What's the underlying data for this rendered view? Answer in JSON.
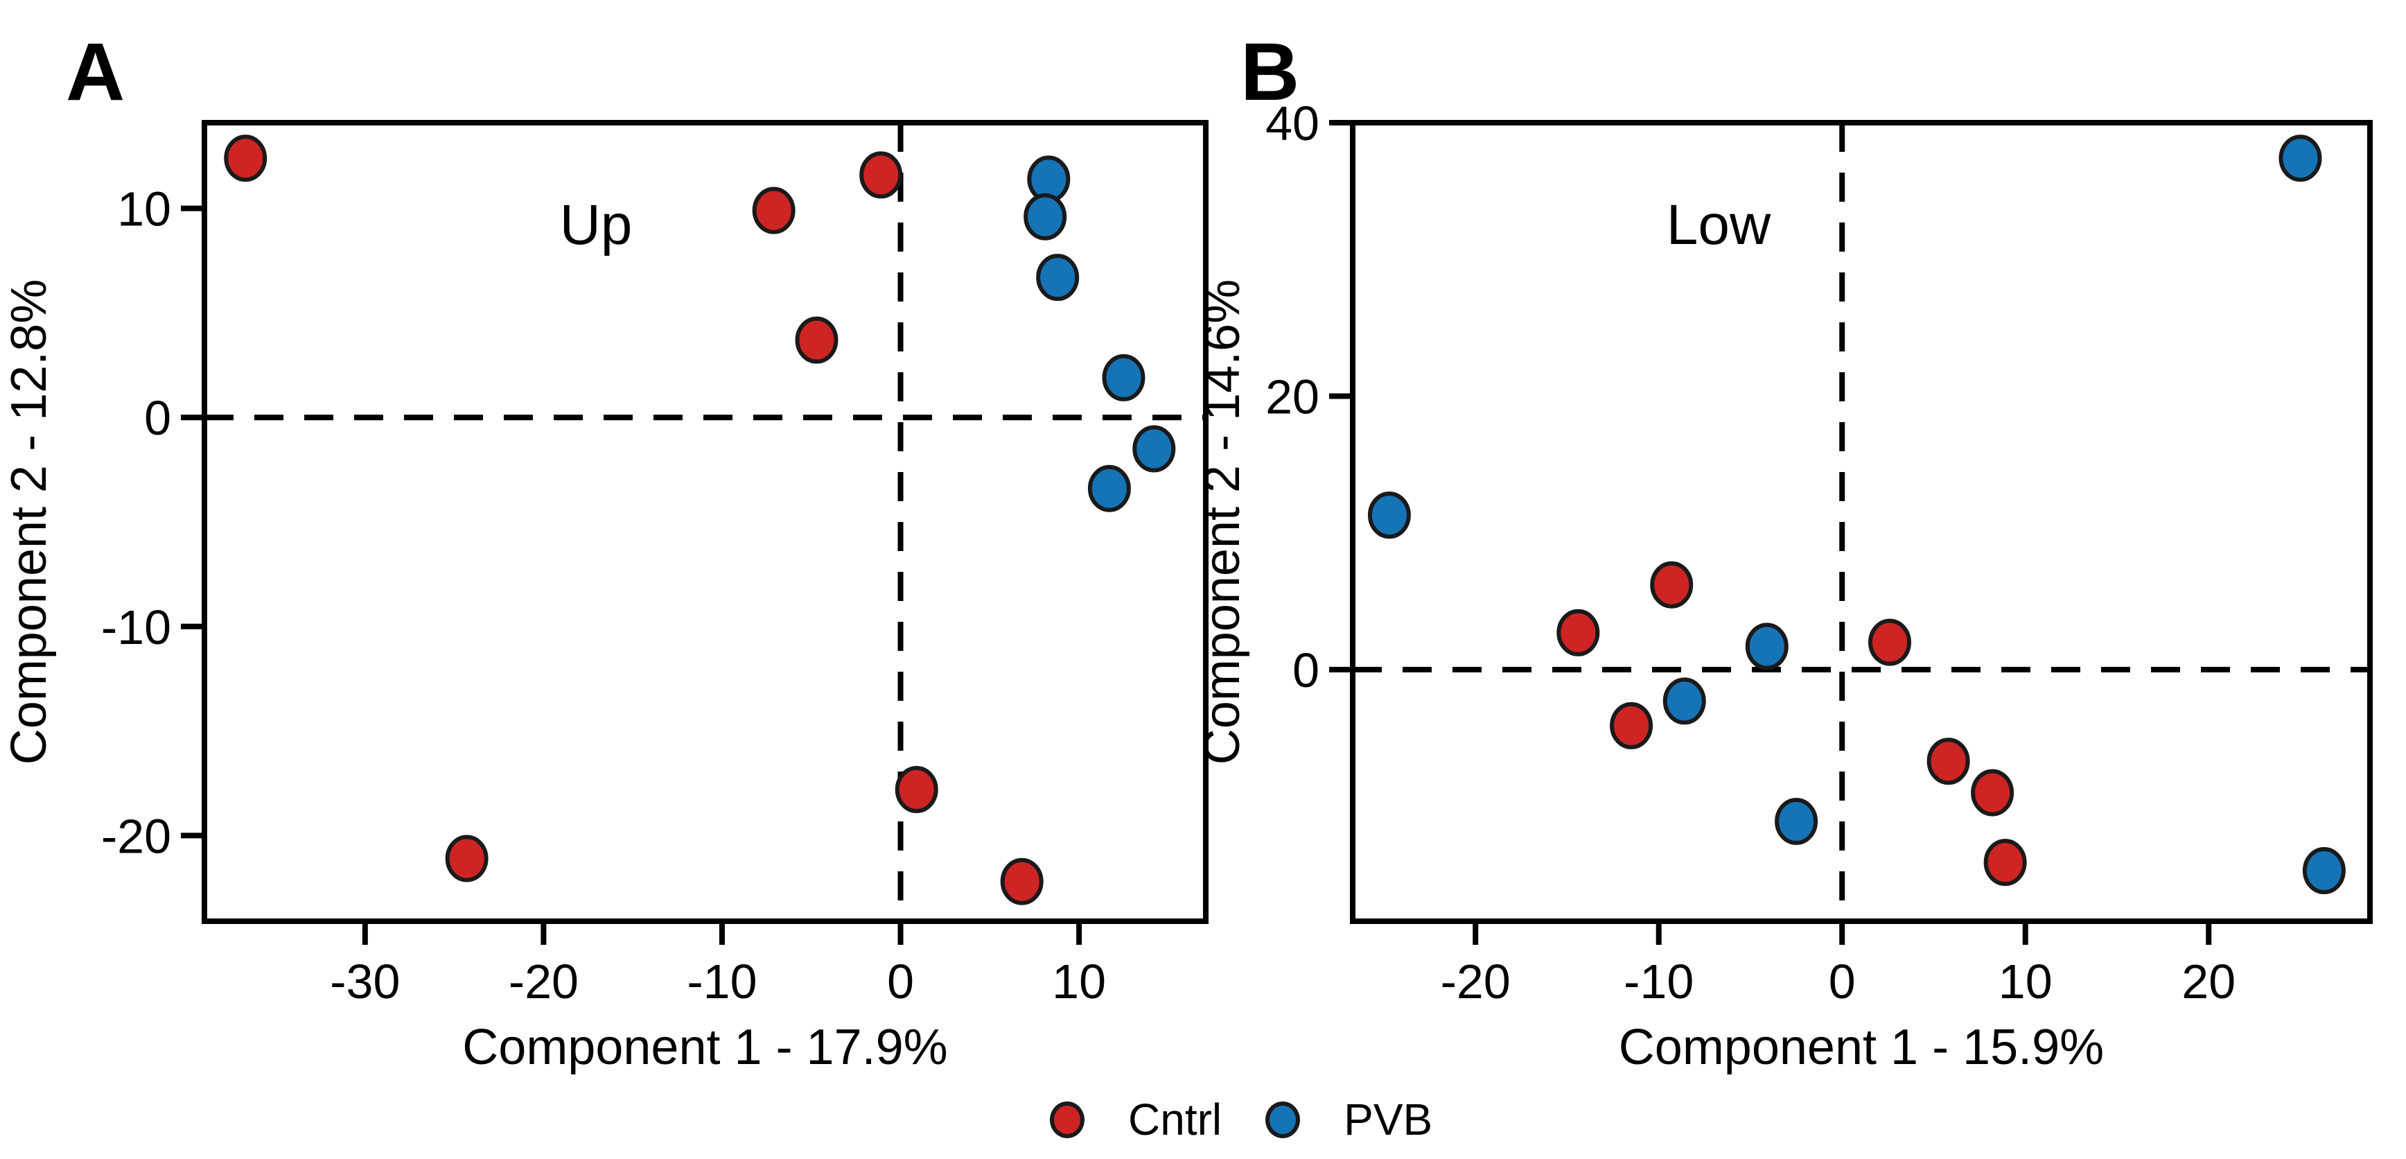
{
  "figure": {
    "background": "#ffffff",
    "text_color": "#000000",
    "axis_color": "#000000",
    "marker_outline": "#1a1a1a",
    "legend": {
      "items": [
        {
          "label": "Cntrl",
          "color": "#ce2424"
        },
        {
          "label": "PVB",
          "color": "#1574b6"
        }
      ]
    }
  },
  "chart_data": [
    {
      "type": "scatter",
      "panel_label": "A",
      "annotation": "Up",
      "xlabel": "Component 1 - 17.9%",
      "ylabel": "Component 2 - 12.8%",
      "xlim": [
        -39.0,
        17.1
      ],
      "ylim": [
        -24.1,
        14.1
      ],
      "xticks": [
        -30,
        -20,
        -10,
        0,
        10
      ],
      "yticks": [
        10,
        0,
        -10,
        -20
      ],
      "refline_x": 0,
      "refline_y": 0,
      "grid": false,
      "legend_position": "bottom-center",
      "series": [
        {
          "name": "Cntrl",
          "color": "#ce2424",
          "points": [
            [
              -36.7,
              12.4
            ],
            [
              -7.1,
              9.9
            ],
            [
              -1.1,
              11.6
            ],
            [
              -4.7,
              3.7
            ],
            [
              0.9,
              -17.8
            ],
            [
              -24.3,
              -21.1
            ],
            [
              6.8,
              -22.2
            ]
          ]
        },
        {
          "name": "PVB",
          "color": "#1574b6",
          "points": [
            [
              8.3,
              11.4
            ],
            [
              8.1,
              9.6
            ],
            [
              8.8,
              6.7
            ],
            [
              12.5,
              1.9
            ],
            [
              14.2,
              -1.5
            ],
            [
              11.7,
              -3.4
            ]
          ]
        }
      ]
    },
    {
      "type": "scatter",
      "panel_label": "B",
      "annotation": "Low",
      "xlabel": "Component 1 - 15.9%",
      "ylabel": "Component 2 - 14.6%",
      "xlim": [
        -26.7,
        28.8
      ],
      "ylim": [
        -18.4,
        40.0
      ],
      "xticks": [
        -20,
        -10,
        0,
        10,
        20
      ],
      "yticks": [
        40,
        20,
        0
      ],
      "refline_x": 0,
      "refline_y": 0,
      "grid": false,
      "legend_position": "bottom-center",
      "series": [
        {
          "name": "Cntrl",
          "color": "#ce2424",
          "points": [
            [
              -9.3,
              6.2
            ],
            [
              -14.4,
              2.7
            ],
            [
              2.6,
              2.0
            ],
            [
              -11.5,
              -4.1
            ],
            [
              5.8,
              -6.7
            ],
            [
              8.2,
              -9.0
            ],
            [
              8.9,
              -14.1
            ]
          ]
        },
        {
          "name": "PVB",
          "color": "#1574b6",
          "points": [
            [
              25.0,
              37.4
            ],
            [
              -24.7,
              11.3
            ],
            [
              -4.1,
              1.7
            ],
            [
              -8.6,
              -2.3
            ],
            [
              -2.5,
              -11.1
            ],
            [
              26.3,
              -14.7
            ]
          ]
        }
      ]
    }
  ]
}
